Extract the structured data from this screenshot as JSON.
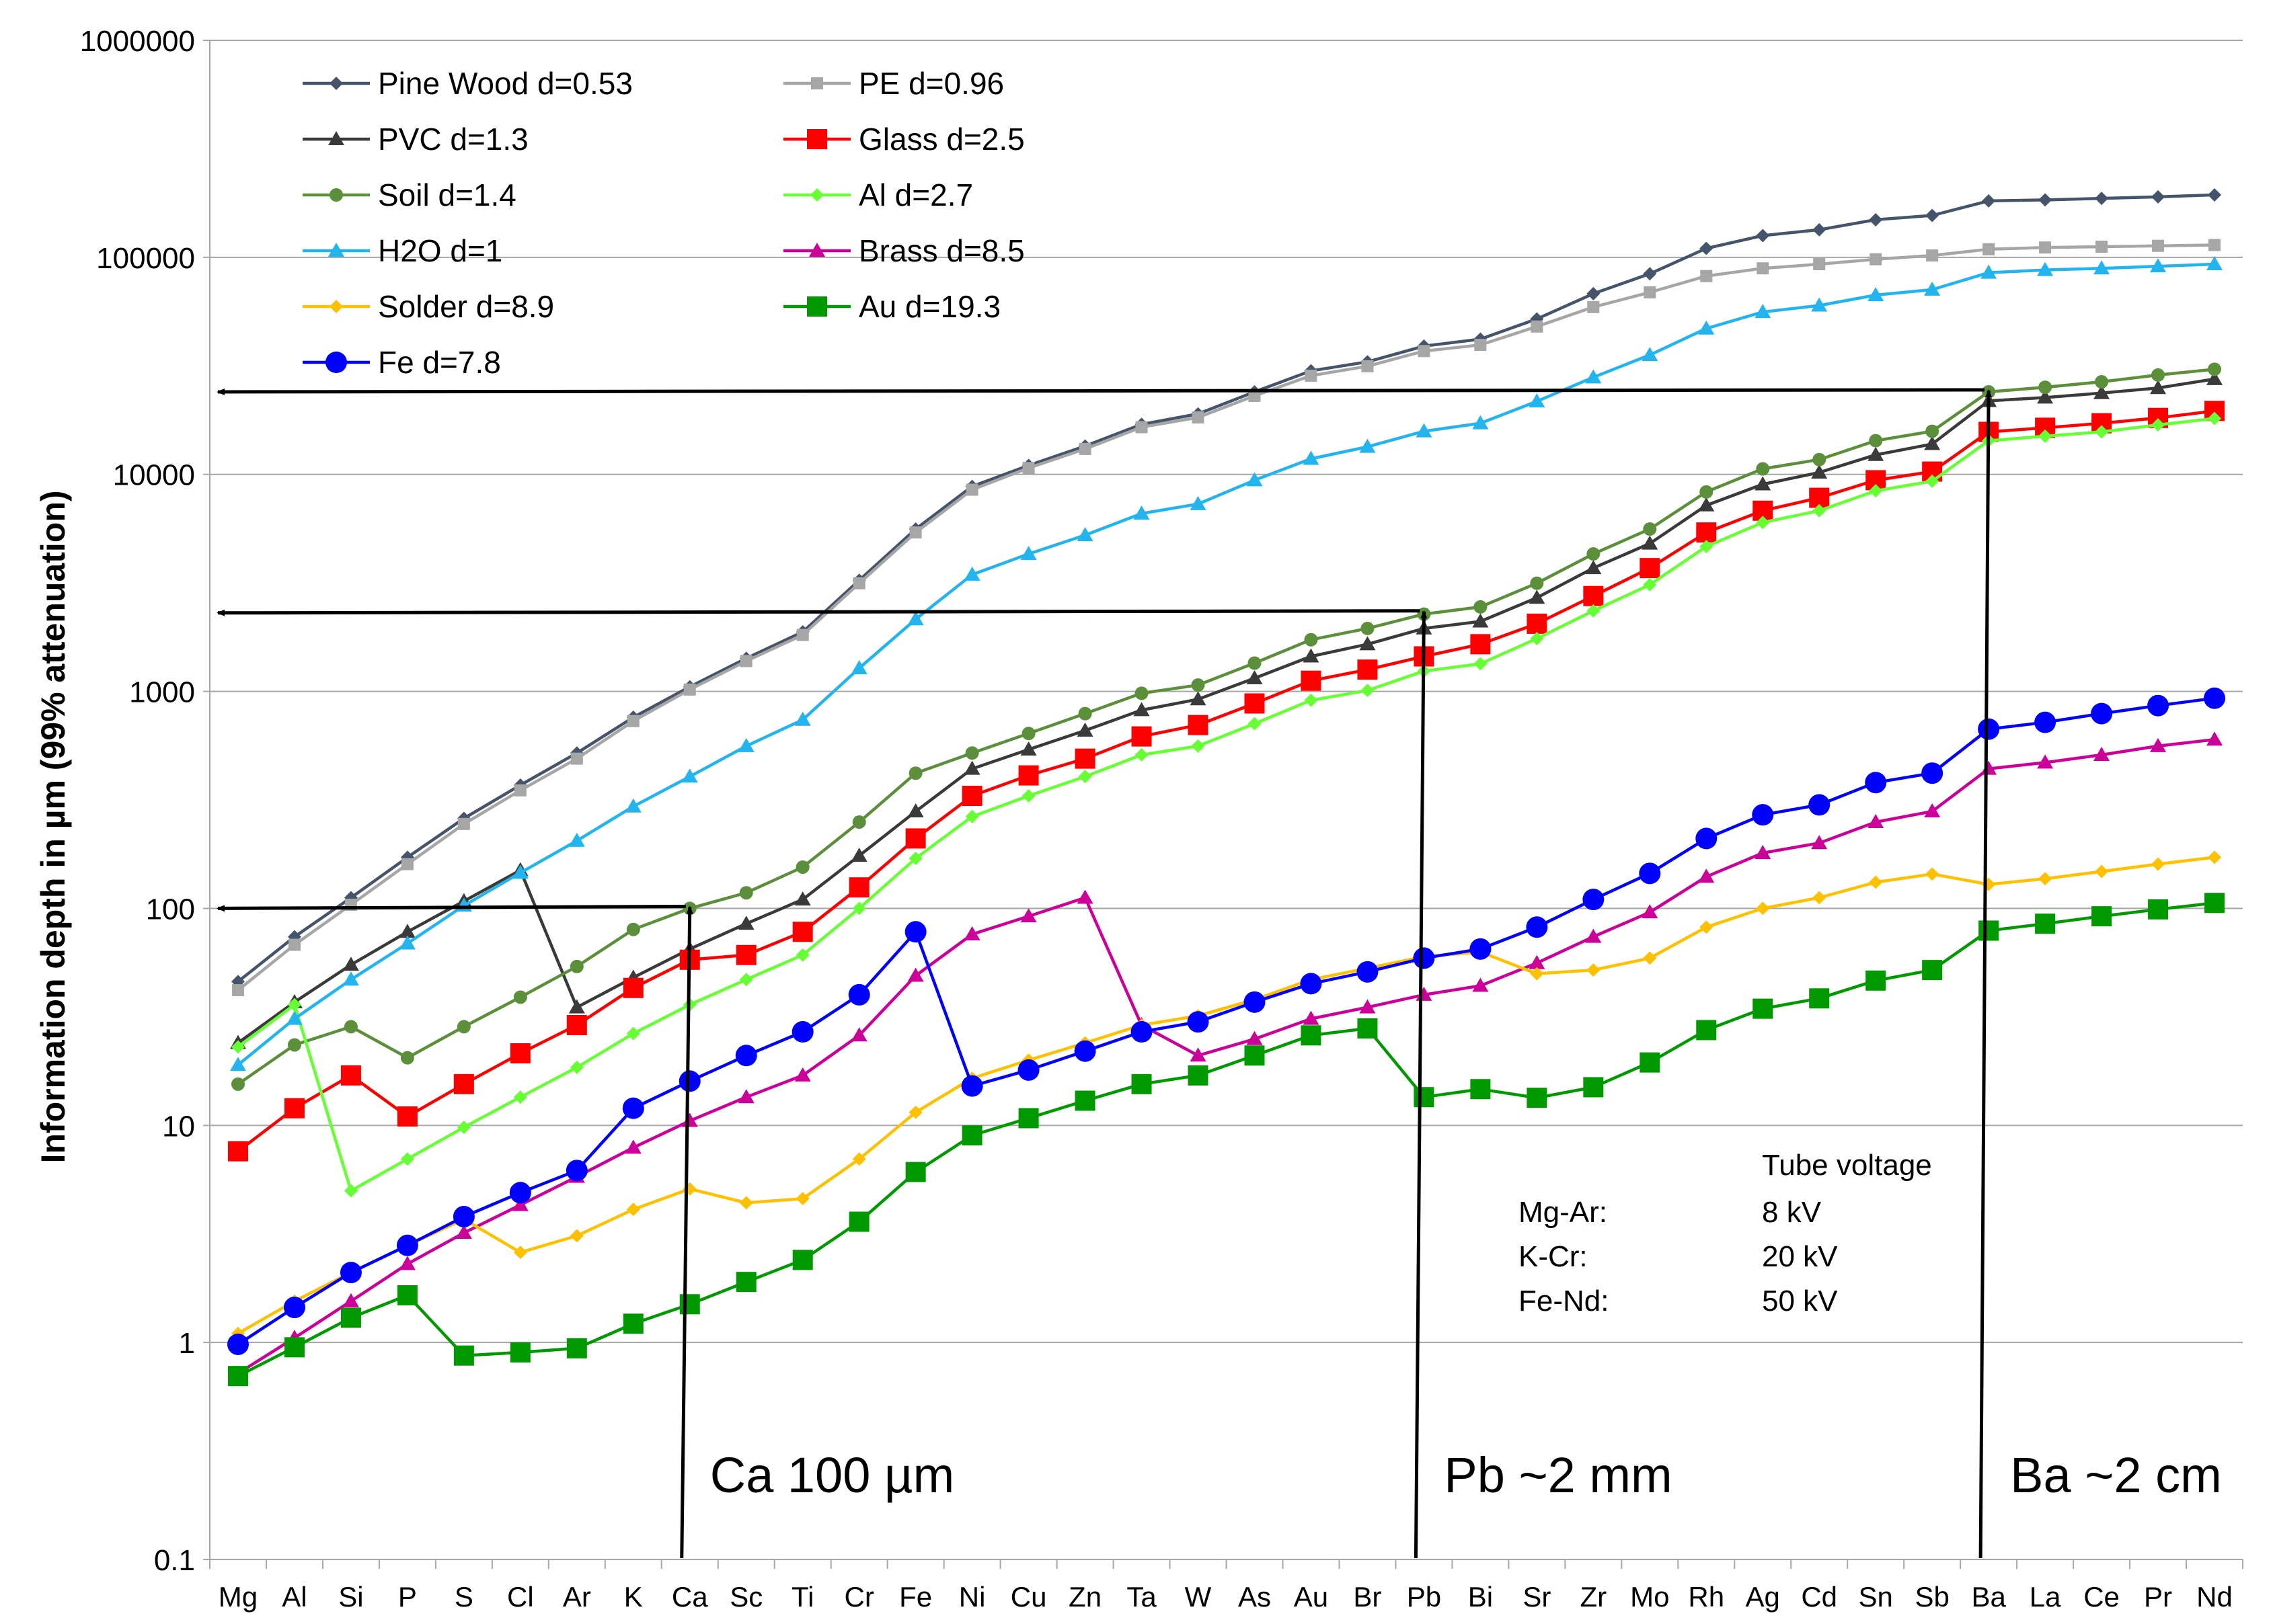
{
  "chart_data": {
    "type": "line",
    "title": "",
    "xlabel": "",
    "ylabel": "Information depth in µm (99% attenuation)",
    "yscale": "log",
    "ylim": [
      0.1,
      1000000
    ],
    "y_ticks": [
      "0.1",
      "1",
      "10",
      "100",
      "1000",
      "10000",
      "100000",
      "1000000"
    ],
    "grid": "horizontal",
    "legend_position": "top-left",
    "categories": [
      "Mg",
      "Al",
      "Si",
      "P",
      "S",
      "Cl",
      "Ar",
      "K",
      "Ca",
      "Sc",
      "Ti",
      "Cr",
      "Fe",
      "Ni",
      "Cu",
      "Zn",
      "Ta",
      "W",
      "As",
      "Au",
      "Br",
      "Pb",
      "Bi",
      "Sr",
      "Zr",
      "Mo",
      "Rh",
      "Ag",
      "Cd",
      "Sn",
      "Sb",
      "Ba",
      "La",
      "Ce",
      "Pr",
      "Nd"
    ],
    "series": [
      {
        "name": "Pine Wood d=0.53",
        "color": "#44546A",
        "marker": "diamond",
        "values": [
          46,
          74,
          112,
          172,
          260,
          370,
          520,
          760,
          1050,
          1420,
          1880,
          3250,
          5600,
          8800,
          11000,
          13500,
          17000,
          19000,
          24000,
          30000,
          33000,
          39000,
          42000,
          52000,
          68000,
          84000,
          110000,
          126000,
          134000,
          149000,
          156000,
          182000,
          184000,
          187000,
          190000,
          194000
        ]
      },
      {
        "name": "PE d=0.96",
        "color": "#A6A6A6",
        "marker": "square",
        "values": [
          42,
          68,
          104,
          160,
          245,
          350,
          490,
          730,
          1020,
          1380,
          1820,
          3150,
          5400,
          8500,
          10700,
          13100,
          16500,
          18300,
          23000,
          28500,
          31500,
          37000,
          39500,
          48000,
          59000,
          69000,
          82000,
          89000,
          93000,
          98000,
          102000,
          109000,
          111000,
          112000,
          113000,
          114000
        ]
      },
      {
        "name": "PVC d=1.3",
        "color": "#3A3A3A",
        "marker": "triangle",
        "values": [
          24,
          37,
          55,
          78,
          108,
          150,
          35,
          48,
          65,
          85,
          110,
          175,
          280,
          440,
          540,
          660,
          820,
          920,
          1150,
          1450,
          1650,
          1950,
          2100,
          2700,
          3700,
          4800,
          7200,
          9000,
          10200,
          12300,
          13800,
          21800,
          22600,
          23700,
          25000,
          27500
        ]
      },
      {
        "name": "Glass d=2.5",
        "color": "#FF0000",
        "marker": "bigsquare",
        "values": [
          7.6,
          12,
          17,
          11,
          15.5,
          21.5,
          29,
          43,
          58,
          61,
          78,
          125,
          210,
          330,
          410,
          490,
          620,
          700,
          880,
          1120,
          1260,
          1450,
          1650,
          2050,
          2750,
          3700,
          5400,
          6800,
          7800,
          9400,
          10300,
          15700,
          16400,
          17200,
          18200,
          19600
        ]
      },
      {
        "name": "Soil d=1.4",
        "color": "#5B8F3A",
        "marker": "circle",
        "values": [
          15.5,
          23.5,
          28.5,
          20.5,
          28.5,
          39,
          54,
          80,
          100,
          118,
          155,
          250,
          420,
          520,
          640,
          790,
          980,
          1070,
          1350,
          1730,
          1950,
          2270,
          2450,
          3150,
          4300,
          5600,
          8300,
          10600,
          11700,
          14300,
          15800,
          24000,
          25200,
          26700,
          28700,
          30500
        ]
      },
      {
        "name": "Al d=2.7",
        "color": "#66FF33",
        "marker": "diamond",
        "values": [
          23,
          36,
          5,
          7,
          9.8,
          13.5,
          18.5,
          26.5,
          36,
          47,
          61,
          100,
          170,
          265,
          330,
          405,
          510,
          560,
          710,
          910,
          1010,
          1240,
          1340,
          1750,
          2350,
          3100,
          4650,
          6000,
          6800,
          8400,
          9300,
          14300,
          15000,
          15700,
          16900,
          18100
        ]
      },
      {
        "name": "H2O d=1",
        "color": "#22B4EE",
        "marker": "triangle",
        "values": [
          19,
          31,
          47,
          69,
          103,
          146,
          205,
          295,
          405,
          560,
          740,
          1280,
          2150,
          3450,
          4300,
          5250,
          6600,
          7300,
          9400,
          11800,
          13400,
          15800,
          17200,
          21700,
          28000,
          35500,
          47000,
          56000,
          60000,
          67000,
          71000,
          85000,
          87500,
          89000,
          91000,
          93000
        ]
      },
      {
        "name": "Brass d=8.5",
        "color": "#CC0099",
        "marker": "triangle",
        "values": [
          0.72,
          1.05,
          1.55,
          2.3,
          3.2,
          4.3,
          5.8,
          7.9,
          10.5,
          13.5,
          17,
          26,
          49,
          76,
          92,
          112,
          29,
          21,
          25,
          31,
          35,
          40,
          44,
          56,
          74,
          96,
          140,
          180,
          200,
          250,
          280,
          440,
          470,
          510,
          560,
          600
        ]
      },
      {
        "name": "Solder d=8.9",
        "color": "#FFC000",
        "marker": "diamond",
        "values": [
          1.1,
          1.55,
          2.1,
          2.8,
          3.7,
          2.6,
          3.1,
          4.1,
          5.1,
          4.4,
          4.6,
          7,
          11.5,
          16.5,
          20,
          24,
          29,
          32,
          38,
          47,
          53,
          60,
          63,
          50,
          52,
          59,
          82,
          100,
          112,
          132,
          144,
          129,
          137,
          148,
          160,
          172
        ]
      },
      {
        "name": "Au d=19.3",
        "color": "#009900",
        "marker": "bigsquare",
        "values": [
          0.7,
          0.95,
          1.3,
          1.65,
          0.87,
          0.9,
          0.94,
          1.22,
          1.5,
          1.9,
          2.4,
          3.6,
          6.1,
          9,
          10.8,
          13,
          15.5,
          17,
          21,
          26,
          28,
          13.5,
          14.7,
          13.4,
          15,
          19.5,
          27.5,
          34.5,
          38.5,
          46.5,
          52,
          79,
          85,
          92,
          99,
          106
        ]
      },
      {
        "name": "Fe d=7.8",
        "color": "#0000FF",
        "marker": "bigcircle",
        "values": [
          0.98,
          1.45,
          2.1,
          2.8,
          3.8,
          4.9,
          6.2,
          12,
          16,
          21,
          27,
          40,
          78,
          15.2,
          18,
          22,
          27,
          30,
          37,
          45,
          51,
          59,
          65,
          82,
          110,
          145,
          210,
          270,
          300,
          380,
          420,
          670,
          720,
          790,
          860,
          930
        ]
      }
    ],
    "annotations": {
      "tube_voltage_title": "Tube voltage",
      "tube_voltage": [
        {
          "range": "Mg-Ar:",
          "voltage": "8 kV"
        },
        {
          "range": "K-Cr:",
          "voltage": "20 kV"
        },
        {
          "range": "Fe-Nd:",
          "voltage": "50 kV"
        }
      ],
      "arrows": [
        {
          "label": "Ca 100 µm",
          "element": "Ca",
          "depth": 100
        },
        {
          "label": "Pb ~2 mm",
          "element": "Pb",
          "depth": 2300
        },
        {
          "label": "Ba ~2 cm",
          "element": "Ba",
          "depth": 24000
        }
      ]
    }
  }
}
